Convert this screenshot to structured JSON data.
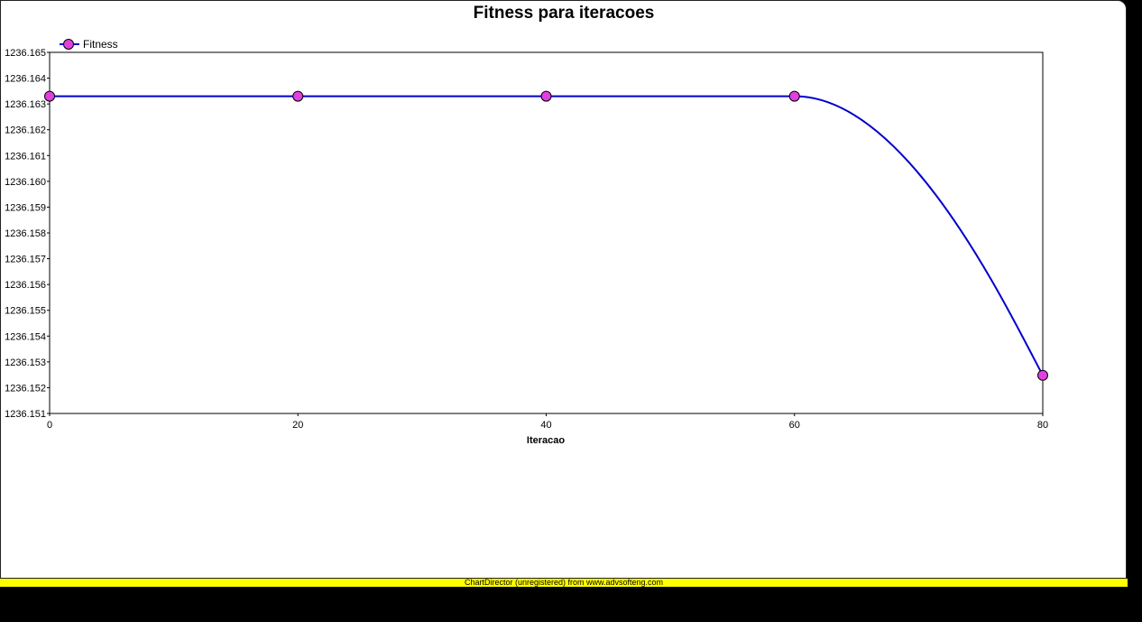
{
  "chart_data": {
    "type": "line",
    "title": "Fitness para iteracoes",
    "xlabel": "Iteracao",
    "ylabel": "",
    "x": [
      0,
      20,
      40,
      60,
      80
    ],
    "series": [
      {
        "name": "Fitness",
        "values": [
          1236.1633,
          1236.1633,
          1236.1633,
          1236.1633,
          1236.15248
        ]
      }
    ],
    "xlim": [
      0,
      80
    ],
    "ylim": [
      1236.151,
      1236.165
    ],
    "x_ticks": [
      "0",
      "20",
      "40",
      "60",
      "80"
    ],
    "y_ticks": [
      "1236.165",
      "1236.164",
      "1236.163",
      "1236.162",
      "1236.161",
      "1236.160",
      "1236.159",
      "1236.158",
      "1236.157",
      "1236.156",
      "1236.155",
      "1236.154",
      "1236.153",
      "1236.152",
      "1236.151"
    ],
    "grid": false,
    "legend": "top-left",
    "line_color": "#0000cc",
    "marker_color": "#e040e0",
    "smooth": true
  },
  "footer": "ChartDirector (unregistered) from www.advsofteng.com"
}
